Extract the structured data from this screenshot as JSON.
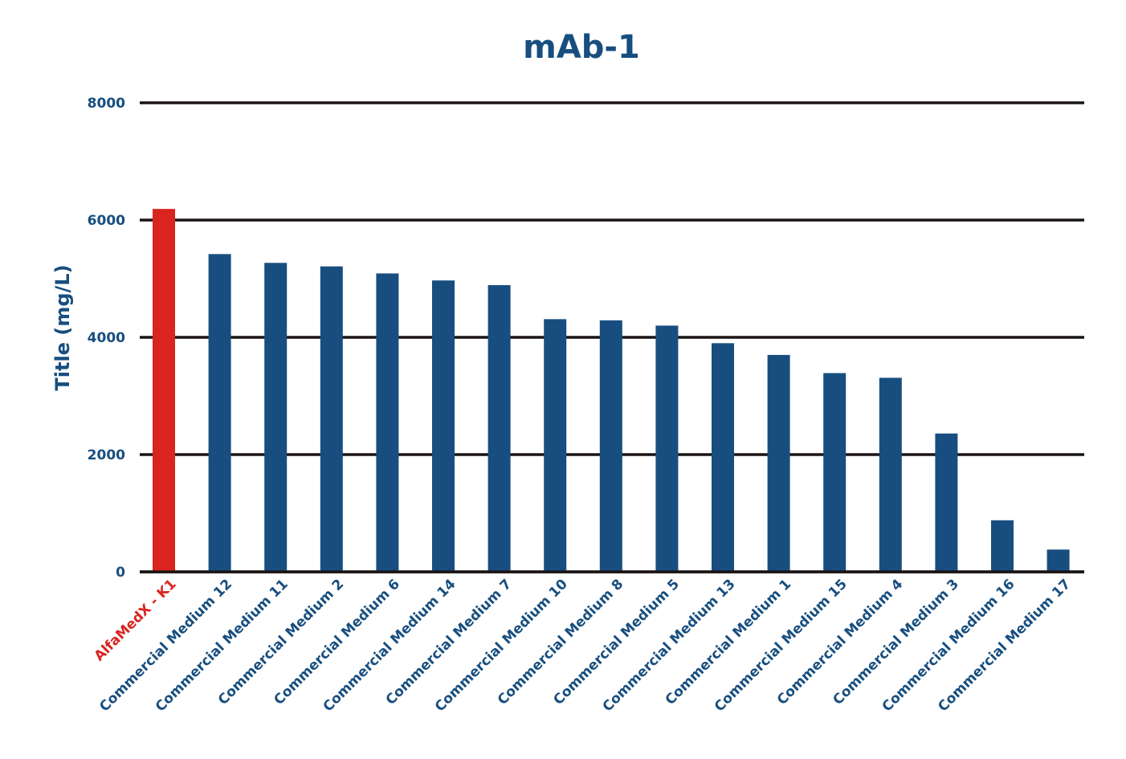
{
  "chart_data": {
    "type": "bar",
    "title": "mAb-1",
    "xlabel": "",
    "ylabel": "Title (mg/L)",
    "ylim": [
      0,
      8000
    ],
    "yticks": [
      0,
      2000,
      4000,
      6000,
      8000
    ],
    "ytick_labels": [
      "0",
      "2000",
      "4000",
      "6000",
      "8000"
    ],
    "grid": true,
    "legend": "none",
    "categories": [
      "AlfaMedX - K1",
      "Commercial Medium 12",
      "Commercial Medium 11",
      "Commercial Medium 2",
      "Commercial Medium 6",
      "Commercial Medium 14",
      "Commercial Medium 7",
      "Commercial Medium 10",
      "Commercial Medium 8",
      "Commercial Medium 5",
      "Commercial Medium 13",
      "Commercial Medium 1",
      "Commercial Medium 15",
      "Commercial Medium 4",
      "Commercial Medium 3",
      "Commercial Medium 16",
      "Commercial Medium 17"
    ],
    "values": [
      6190,
      5420,
      5270,
      5210,
      5090,
      4970,
      4890,
      4310,
      4290,
      4200,
      3900,
      3700,
      3390,
      3310,
      2360,
      880,
      380
    ],
    "highlight_index": 0
  },
  "colors": {
    "primary": "#174e7f",
    "highlight": "#d9241f",
    "grid": "#1a1414"
  }
}
